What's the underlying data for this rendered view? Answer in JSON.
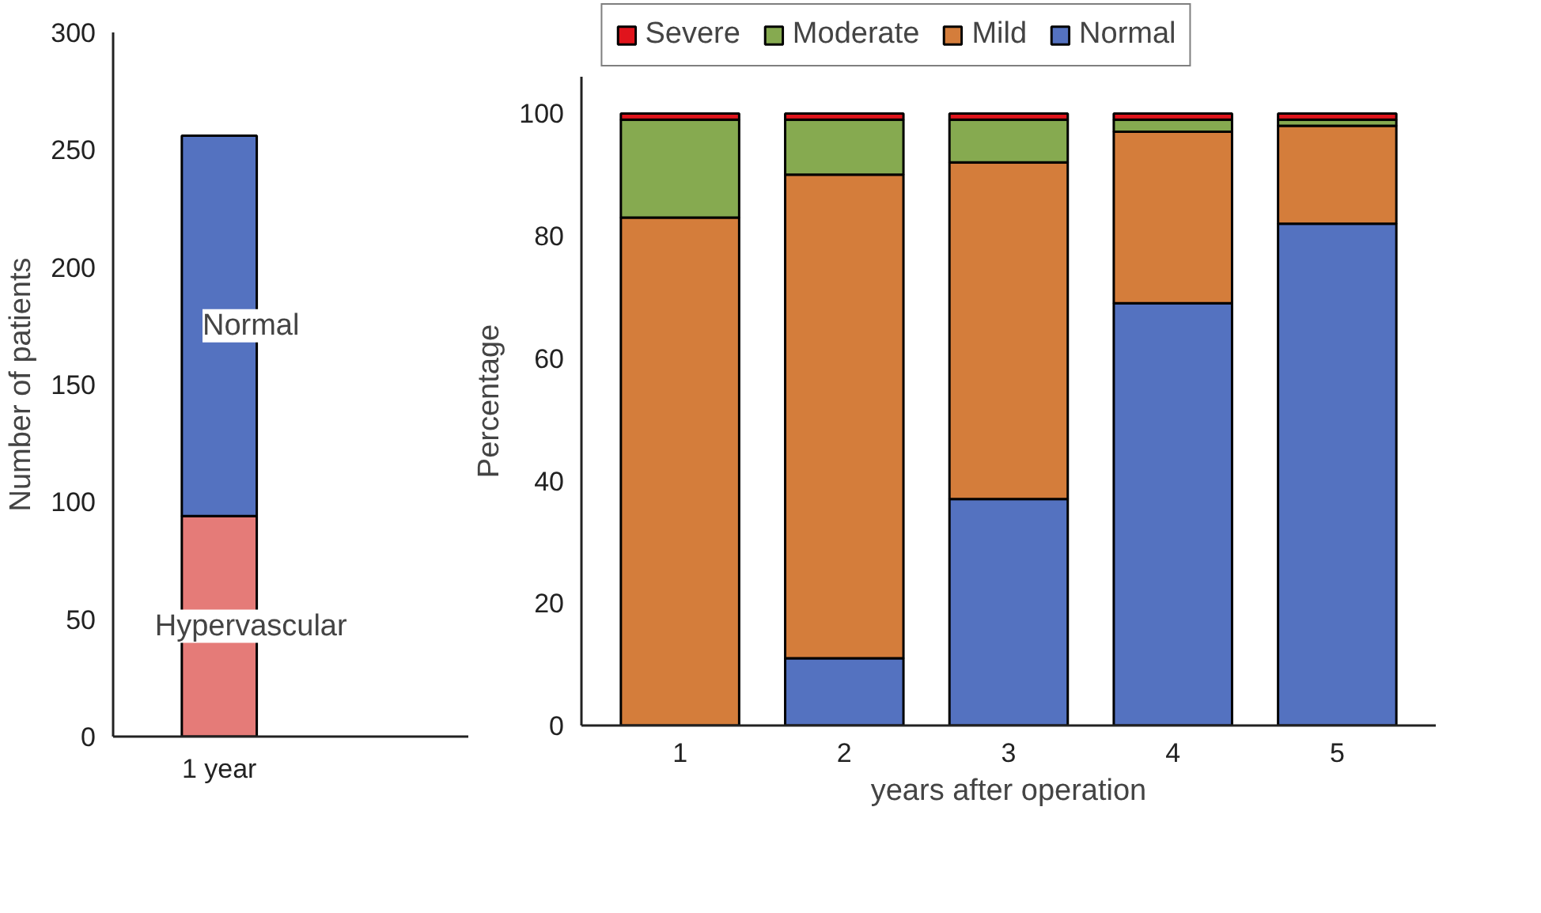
{
  "chart_data": [
    {
      "type": "bar",
      "stacked": true,
      "ylabel": "Number of patients",
      "categories": [
        "1 year"
      ],
      "ylim": [
        0,
        300
      ],
      "yticks": [
        0,
        50,
        100,
        150,
        200,
        250,
        300
      ],
      "grid": false,
      "legend": false,
      "series": [
        {
          "name": "Hypervascular",
          "color": "#e57b78",
          "values": [
            94
          ]
        },
        {
          "name": "Normal",
          "color": "#5472c0",
          "values": [
            162
          ]
        }
      ]
    },
    {
      "type": "bar",
      "stacked": true,
      "ylabel": "Percentage",
      "xlabel": "years after operation",
      "categories": [
        "1",
        "2",
        "3",
        "4",
        "5"
      ],
      "ylim": [
        0,
        106
      ],
      "yticks": [
        0,
        20,
        40,
        60,
        80,
        100
      ],
      "grid": false,
      "legend": "top",
      "series": [
        {
          "name": "Normal",
          "color": "#5472c0",
          "values": [
            0,
            11,
            37,
            69,
            82
          ]
        },
        {
          "name": "Mild",
          "color": "#d47d3b",
          "values": [
            83,
            79,
            55,
            28,
            16
          ]
        },
        {
          "name": "Moderate",
          "color": "#86aa50",
          "values": [
            16,
            9,
            7,
            2,
            1
          ]
        },
        {
          "name": "Severe",
          "color": "#e0141c",
          "values": [
            1.0,
            1.0,
            1.0,
            1.0,
            1.0
          ]
        }
      ]
    }
  ]
}
